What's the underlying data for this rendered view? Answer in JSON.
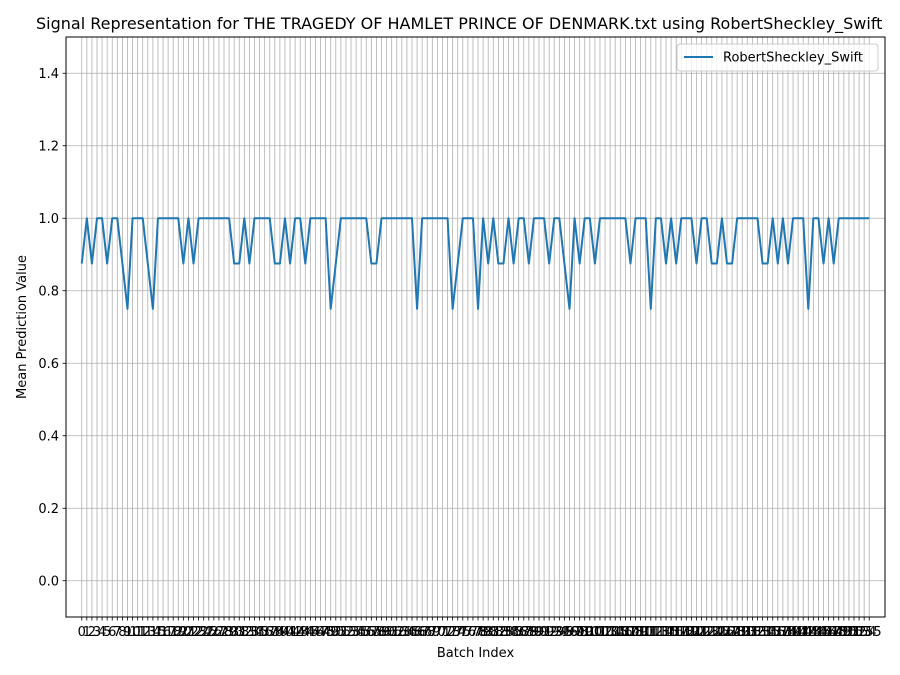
{
  "chart_data": {
    "type": "line",
    "title": "Signal Representation for THE TRAGEDY OF HAMLET PRINCE OF DENMARK.txt using RobertSheckley_Swift",
    "xlabel": "Batch Index",
    "ylabel": "Mean Prediction Value",
    "xlim": [
      -3.1,
      158.1
    ],
    "ylim": [
      -0.1,
      1.5
    ],
    "y_ticks": [
      0.0,
      0.2,
      0.4,
      0.6,
      0.8,
      1.0,
      1.2,
      1.4
    ],
    "grid": true,
    "legend_position": "upper right",
    "line_color": "#1f77b4",
    "series": [
      {
        "name": "RobertSheckley_Swift",
        "values": [
          0.875,
          1.0,
          0.875,
          1.0,
          1.0,
          0.875,
          1.0,
          1.0,
          0.875,
          0.75,
          1.0,
          1.0,
          1.0,
          0.875,
          0.75,
          1.0,
          1.0,
          1.0,
          1.0,
          1.0,
          0.875,
          1.0,
          0.875,
          1.0,
          1.0,
          1.0,
          1.0,
          1.0,
          1.0,
          1.0,
          0.875,
          0.875,
          1.0,
          0.875,
          1.0,
          1.0,
          1.0,
          1.0,
          0.875,
          0.875,
          1.0,
          0.875,
          1.0,
          1.0,
          0.875,
          1.0,
          1.0,
          1.0,
          1.0,
          0.75,
          0.875,
          1.0,
          1.0,
          1.0,
          1.0,
          1.0,
          1.0,
          0.875,
          0.875,
          1.0,
          1.0,
          1.0,
          1.0,
          1.0,
          1.0,
          1.0,
          0.75,
          1.0,
          1.0,
          1.0,
          1.0,
          1.0,
          1.0,
          0.75,
          0.875,
          1.0,
          1.0,
          1.0,
          0.75,
          1.0,
          0.875,
          1.0,
          0.875,
          0.875,
          1.0,
          0.875,
          1.0,
          1.0,
          0.875,
          1.0,
          1.0,
          1.0,
          0.875,
          1.0,
          1.0,
          0.875,
          0.75,
          1.0,
          0.875,
          1.0,
          1.0,
          0.875,
          1.0,
          1.0,
          1.0,
          1.0,
          1.0,
          1.0,
          0.875,
          1.0,
          1.0,
          1.0,
          0.75,
          1.0,
          1.0,
          0.875,
          1.0,
          0.875,
          1.0,
          1.0,
          1.0,
          0.875,
          1.0,
          1.0,
          0.875,
          0.875,
          1.0,
          0.875,
          0.875,
          1.0,
          1.0,
          1.0,
          1.0,
          1.0,
          0.875,
          0.875,
          1.0,
          0.875,
          1.0,
          0.875,
          1.0,
          1.0,
          1.0,
          0.75,
          1.0,
          1.0,
          0.875,
          1.0,
          0.875,
          1.0,
          1.0,
          1.0,
          1.0,
          1.0,
          1.0,
          1.0
        ]
      }
    ]
  }
}
